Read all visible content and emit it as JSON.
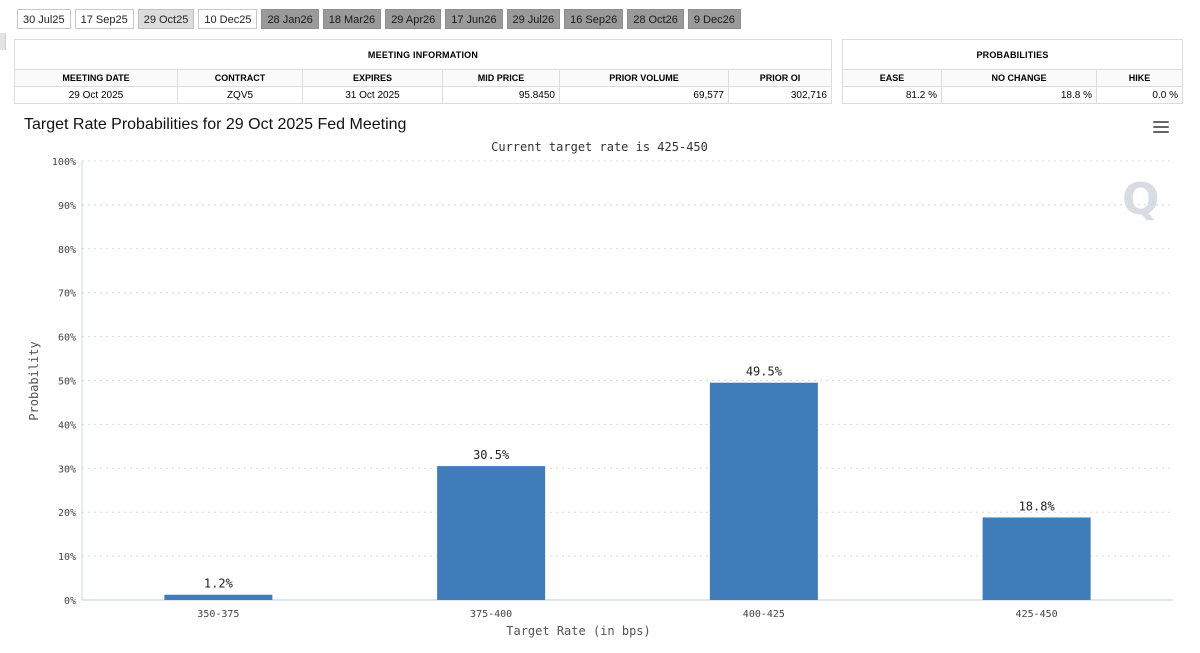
{
  "tabs": [
    {
      "label": "30 Jul25",
      "state": "normal"
    },
    {
      "label": "17 Sep25",
      "state": "normal"
    },
    {
      "label": "29 Oct25",
      "state": "selected"
    },
    {
      "label": "10 Dec25",
      "state": "normal"
    },
    {
      "label": "28 Jan26",
      "state": "future"
    },
    {
      "label": "18 Mar26",
      "state": "future"
    },
    {
      "label": "29 Apr26",
      "state": "future"
    },
    {
      "label": "17 Jun26",
      "state": "future"
    },
    {
      "label": "29 Jul26",
      "state": "future"
    },
    {
      "label": "16 Sep26",
      "state": "future"
    },
    {
      "label": "28 Oct26",
      "state": "future"
    },
    {
      "label": "9 Dec26",
      "state": "future"
    }
  ],
  "meeting_info": {
    "title": "MEETING INFORMATION",
    "headers": [
      "MEETING DATE",
      "CONTRACT",
      "EXPIRES",
      "MID PRICE",
      "PRIOR VOLUME",
      "PRIOR OI"
    ],
    "values": [
      "29 Oct 2025",
      "ZQV5",
      "31 Oct 2025",
      "95.8450",
      "69,577",
      "302,716"
    ]
  },
  "probabilities": {
    "title": "PROBABILITIES",
    "headers": [
      "EASE",
      "NO CHANGE",
      "HIKE"
    ],
    "values": [
      "81.2 %",
      "18.8 %",
      "0.0 %"
    ]
  },
  "chart": {
    "watermark": "Q"
  },
  "chart_data": {
    "type": "bar",
    "title": "Target Rate Probabilities for 29 Oct 2025 Fed Meeting",
    "subtitle": "Current target rate is 425-450",
    "xlabel": "Target Rate (in bps)",
    "ylabel": "Probability",
    "categories": [
      "350-375",
      "375-400",
      "400-425",
      "425-450"
    ],
    "values": [
      1.2,
      30.5,
      49.5,
      18.8
    ],
    "data_labels": [
      "1.2%",
      "30.5%",
      "49.5%",
      "18.8%"
    ],
    "ylim": [
      0,
      100
    ],
    "yticks": [
      0,
      10,
      20,
      30,
      40,
      50,
      60,
      70,
      80,
      90,
      100
    ],
    "ytick_labels": [
      "0%",
      "10%",
      "20%",
      "30%",
      "40%",
      "50%",
      "60%",
      "70%",
      "80%",
      "90%",
      "100%"
    ],
    "grid": "dashed horizontal",
    "bar_color": "#3f7cba",
    "legend": "none"
  }
}
